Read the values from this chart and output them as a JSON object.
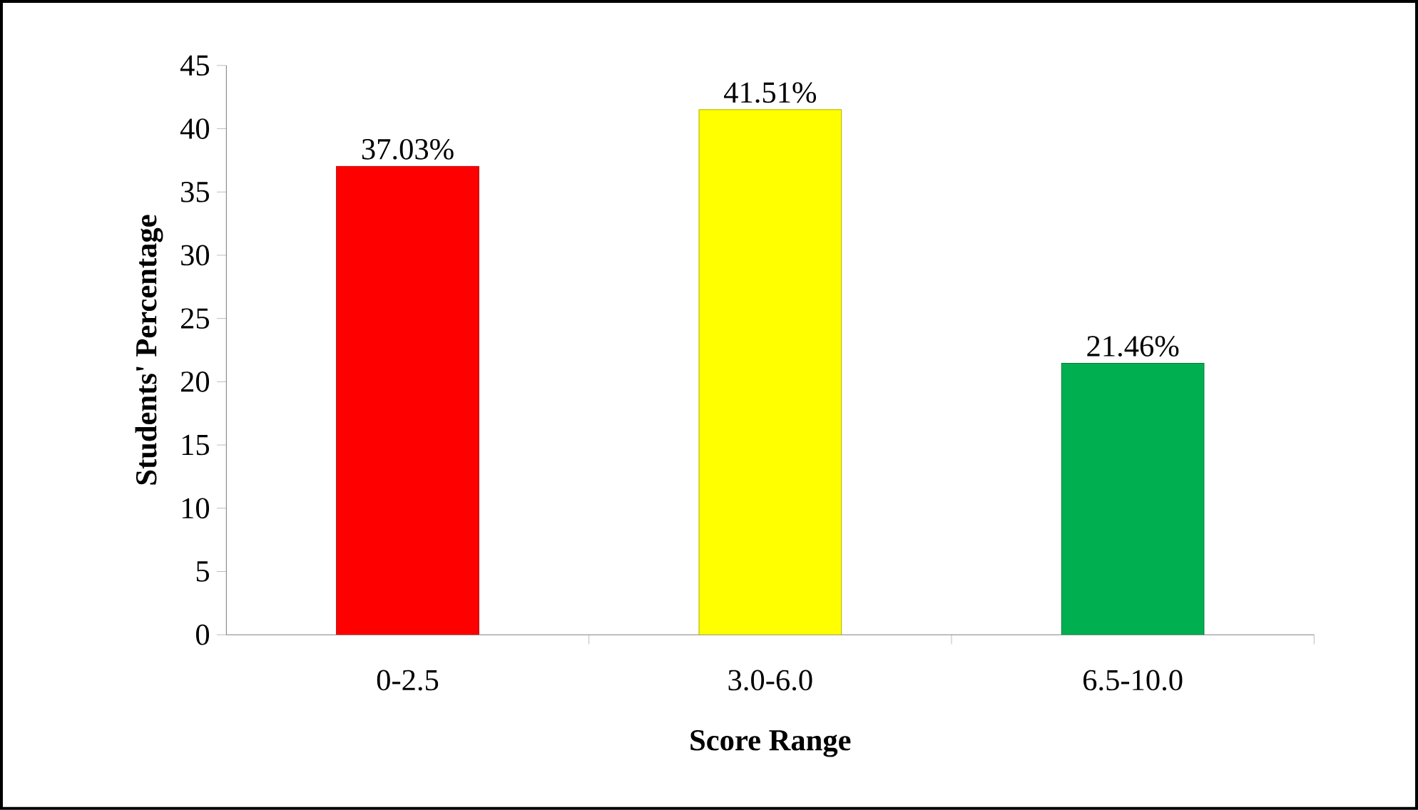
{
  "chart_data": {
    "type": "bar",
    "xlabel": "Score  Range",
    "ylabel": "Students'  Percentage",
    "categories": [
      "0-2.5",
      "3.0-6.0",
      "6.5-10.0"
    ],
    "values": [
      37.03,
      41.51,
      21.46
    ],
    "value_labels": [
      "37.03%",
      "41.51%",
      "21.46%"
    ],
    "colors": [
      "#ff0000",
      "#ffff00",
      "#00b050"
    ],
    "ylim": [
      0,
      45
    ],
    "yticks": [
      0,
      5,
      10,
      15,
      20,
      25,
      30,
      35,
      40,
      45
    ]
  }
}
